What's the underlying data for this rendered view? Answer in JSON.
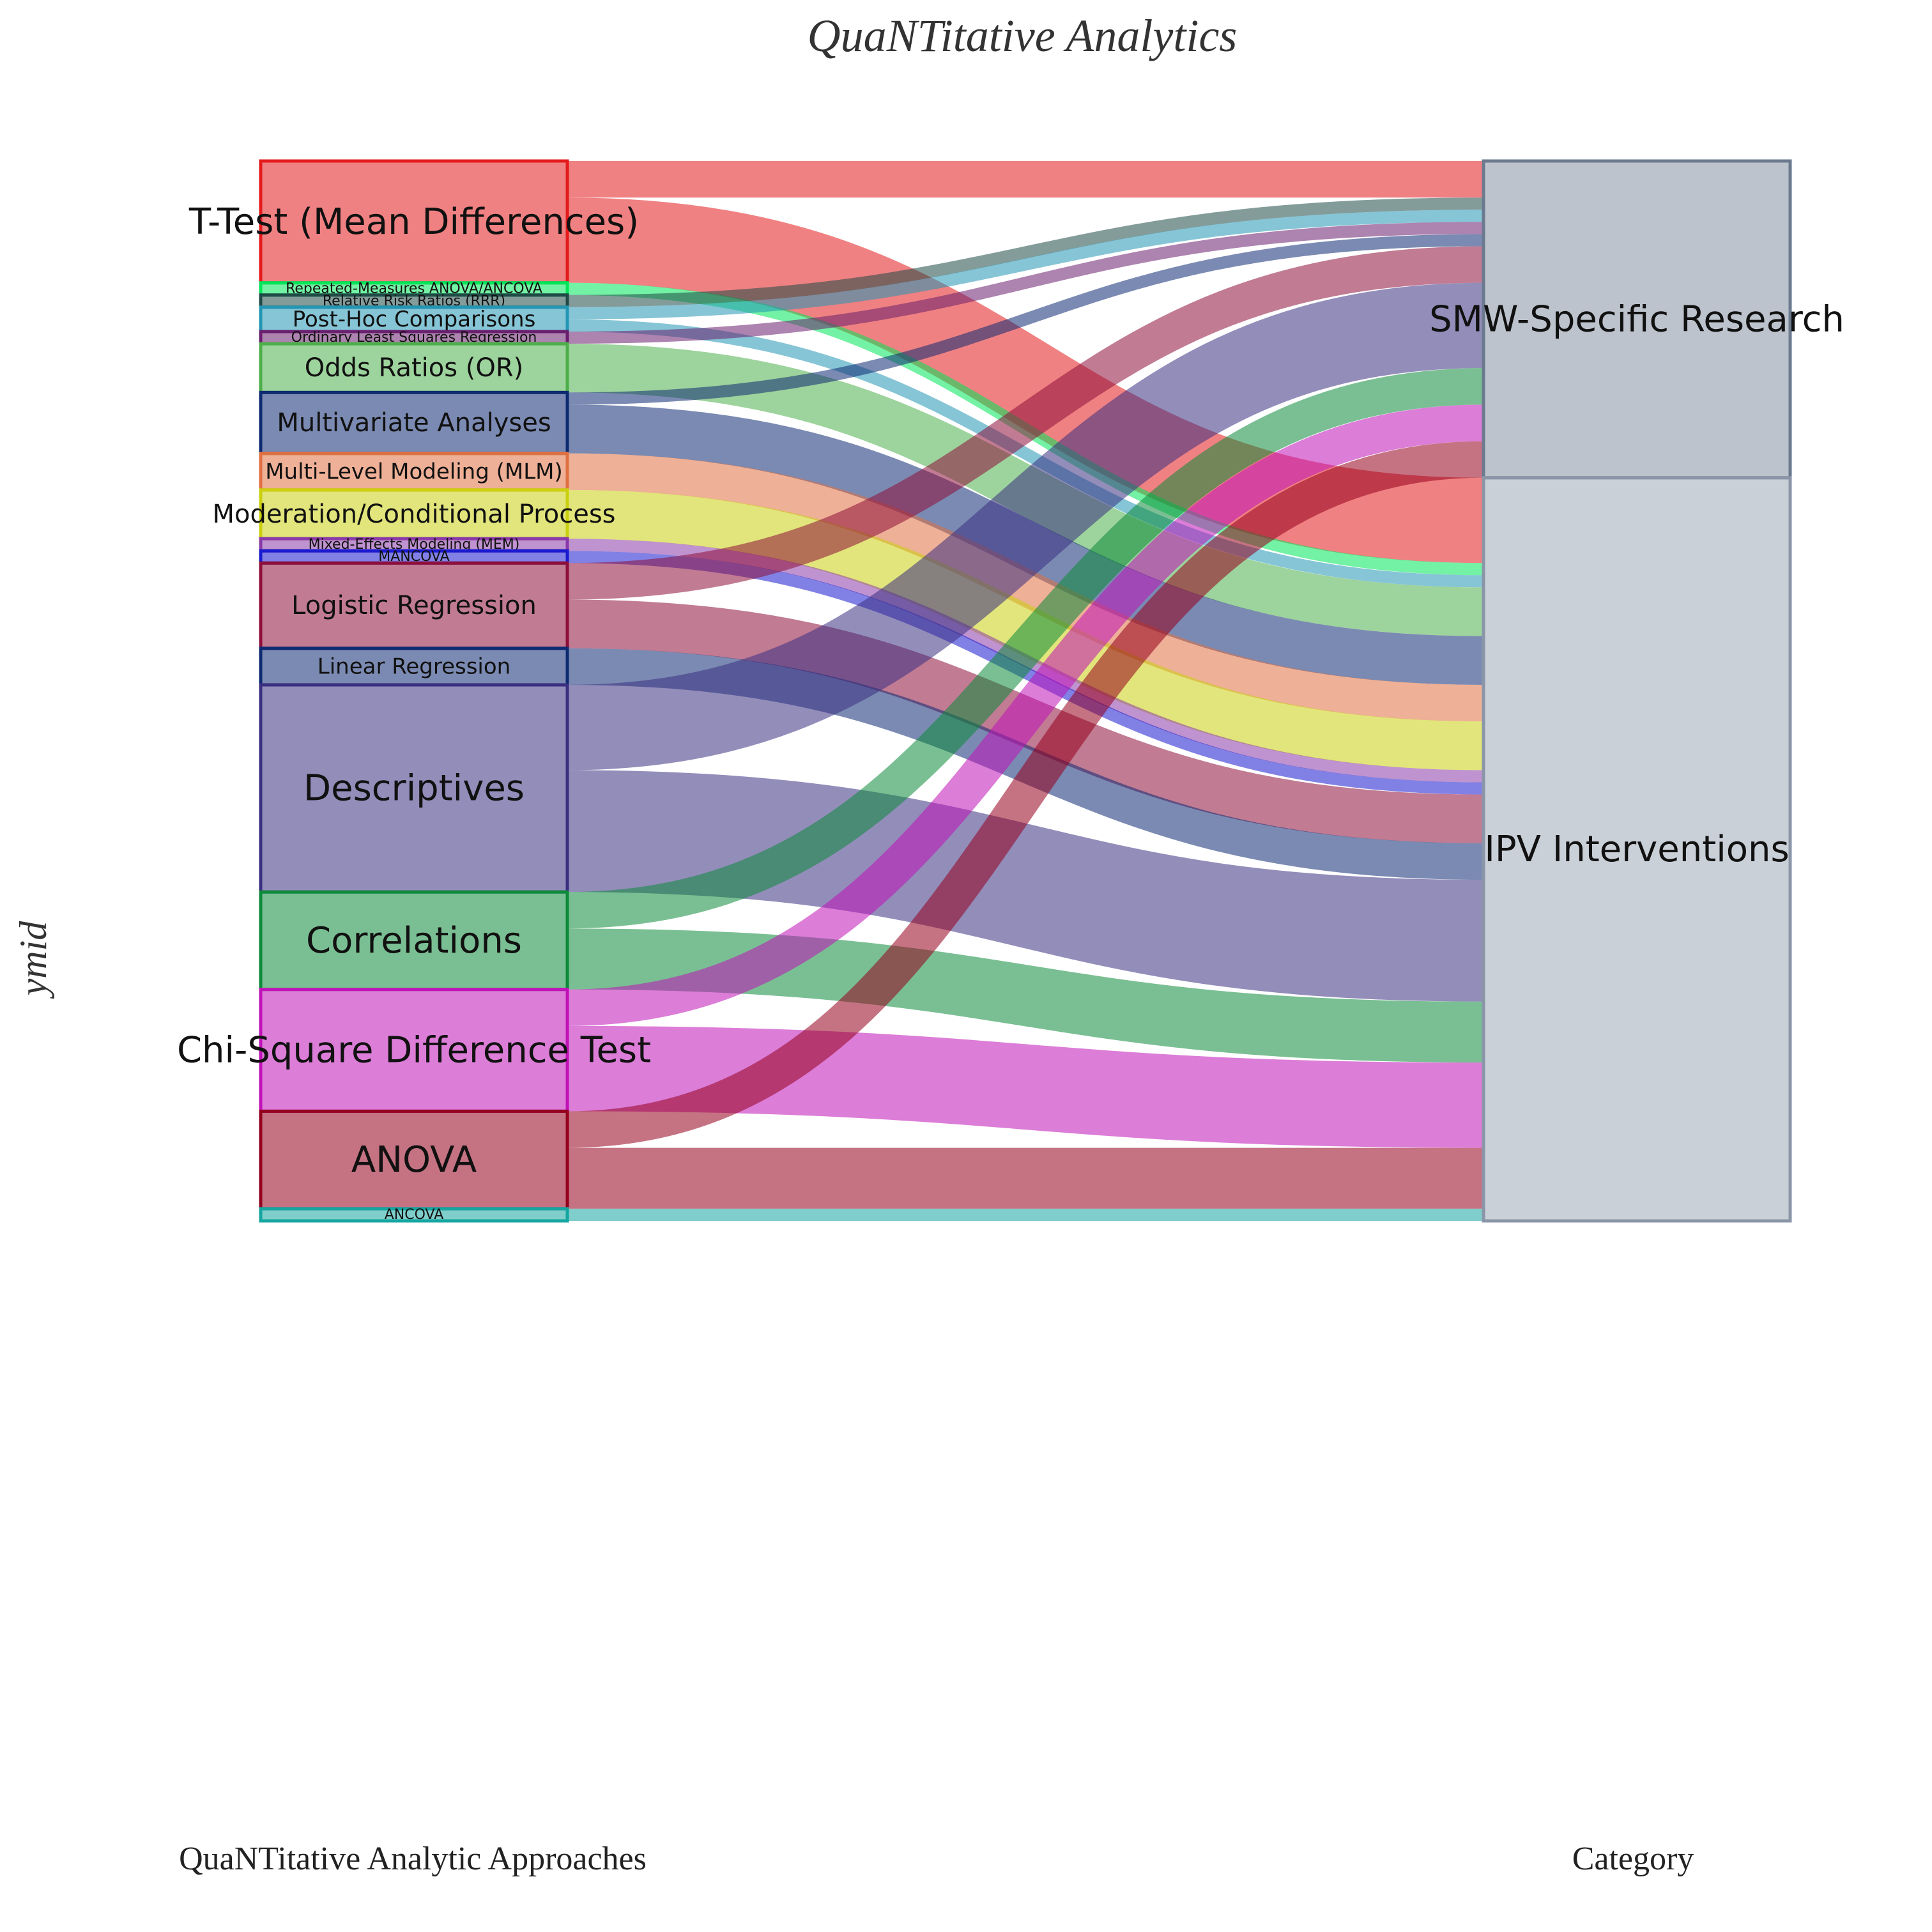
{
  "chart_data": {
    "type": "sankey",
    "title": "QuaNTitative Analytics",
    "ylabel": "ymid",
    "xlabels": [
      "QuaNTitative Analytic Approaches",
      "Category"
    ],
    "scale_total": 131,
    "stages": [
      {
        "nodes": [
          {
            "name": "T-Test (Mean Differences)",
            "color": "#e41a1c"
          },
          {
            "name": "Repeated-Measures ANOVA/ANCOVA",
            "color": "#00e65a"
          },
          {
            "name": "Relative Risk Ratios (RRR)",
            "color": "#1f4a46"
          },
          {
            "name": "Post-Hoc Comparisons",
            "color": "#2396b4"
          },
          {
            "name": "Ordinary Least Squares Regression",
            "color": "#6a1e6e"
          },
          {
            "name": "Odds Ratios (OR)",
            "color": "#4daf4a"
          },
          {
            "name": "Multivariate Analyses",
            "color": "#0e2a72"
          },
          {
            "name": "Multi-Level Modeling (MLM)",
            "color": "#e07040"
          },
          {
            "name": "Moderation/Conditional Process",
            "color": "#cbd00e"
          },
          {
            "name": "Mixed-Effects Modeling (MEM)",
            "color": "#8a3aa8"
          },
          {
            "name": "MANCOVA",
            "color": "#1a1ad0"
          },
          {
            "name": "Logistic Regression",
            "color": "#8e0f3a"
          },
          {
            "name": "Linear Regression",
            "color": "#0e2a72"
          },
          {
            "name": "Descriptives",
            "color": "#3b2f82"
          },
          {
            "name": "Correlations",
            "color": "#0d8a3a"
          },
          {
            "name": "Chi-Square Difference Test",
            "color": "#c012b8"
          },
          {
            "name": "ANOVA",
            "color": "#95001e"
          },
          {
            "name": "ANCOVA",
            "color": "#15a6a0"
          }
        ]
      },
      {
        "nodes": [
          {
            "name": "SMW-Specific Research",
            "color": "#6b7a8f"
          },
          {
            "name": "IPV Interventions",
            "color": "#8a96a8"
          }
        ]
      }
    ],
    "flows": [
      {
        "source": "T-Test (Mean Differences)",
        "target": "SMW-Specific Research",
        "value": 3
      },
      {
        "source": "T-Test (Mean Differences)",
        "target": "IPV Interventions",
        "value": 7
      },
      {
        "source": "Repeated-Measures ANOVA/ANCOVA",
        "target": "IPV Interventions",
        "value": 1
      },
      {
        "source": "Relative Risk Ratios (RRR)",
        "target": "SMW-Specific Research",
        "value": 1
      },
      {
        "source": "Post-Hoc Comparisons",
        "target": "SMW-Specific Research",
        "value": 1
      },
      {
        "source": "Post-Hoc Comparisons",
        "target": "IPV Interventions",
        "value": 1
      },
      {
        "source": "Ordinary Least Squares Regression",
        "target": "SMW-Specific Research",
        "value": 1
      },
      {
        "source": "Odds Ratios (OR)",
        "target": "IPV Interventions",
        "value": 4
      },
      {
        "source": "Multivariate Analyses",
        "target": "SMW-Specific Research",
        "value": 1
      },
      {
        "source": "Multivariate Analyses",
        "target": "IPV Interventions",
        "value": 4
      },
      {
        "source": "Multi-Level Modeling (MLM)",
        "target": "IPV Interventions",
        "value": 3
      },
      {
        "source": "Moderation/Conditional Process",
        "target": "IPV Interventions",
        "value": 4
      },
      {
        "source": "Mixed-Effects Modeling (MEM)",
        "target": "IPV Interventions",
        "value": 1
      },
      {
        "source": "MANCOVA",
        "target": "IPV Interventions",
        "value": 1
      },
      {
        "source": "Logistic Regression",
        "target": "SMW-Specific Research",
        "value": 3
      },
      {
        "source": "Logistic Regression",
        "target": "IPV Interventions",
        "value": 4
      },
      {
        "source": "Linear Regression",
        "target": "IPV Interventions",
        "value": 3
      },
      {
        "source": "Descriptives",
        "target": "SMW-Specific Research",
        "value": 7
      },
      {
        "source": "Descriptives",
        "target": "IPV Interventions",
        "value": 10
      },
      {
        "source": "Correlations",
        "target": "SMW-Specific Research",
        "value": 3
      },
      {
        "source": "Correlations",
        "target": "IPV Interventions",
        "value": 5
      },
      {
        "source": "Chi-Square Difference Test",
        "target": "SMW-Specific Research",
        "value": 3
      },
      {
        "source": "Chi-Square Difference Test",
        "target": "IPV Interventions",
        "value": 7
      },
      {
        "source": "ANOVA",
        "target": "SMW-Specific Research",
        "value": 3
      },
      {
        "source": "ANOVA",
        "target": "IPV Interventions",
        "value": 5
      },
      {
        "source": "ANCOVA",
        "target": "IPV Interventions",
        "value": 1
      }
    ]
  }
}
